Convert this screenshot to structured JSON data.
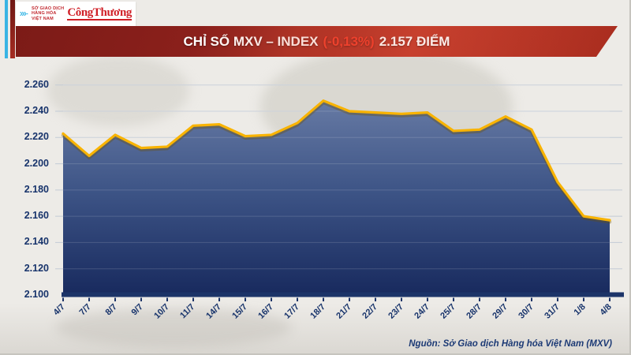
{
  "header": {
    "logo": {
      "org_lines": [
        "SỞ GIAO DỊCH",
        "HÀNG HÓA",
        "VIỆT NAM"
      ],
      "brand": "CôngThương"
    },
    "banner": {
      "title": "CHỈ SỐ MXV – INDEX",
      "change": "(-0,13%)",
      "points": "2.157 ĐIỂM"
    }
  },
  "footer": {
    "source": "Nguồn: Sở Giao dịch Hàng hóa Việt Nam (MXV)"
  },
  "colors": {
    "accent_red": "#f03a28",
    "banner_dark": "#7c1b17",
    "banner_bright": "#c23b2b",
    "line_yellow": "#f8b301",
    "line_shadow": "rgba(110,80,0,0.35)",
    "area_top": "#6c7fa8",
    "area_mid": "#3d5486",
    "area_bottom": "#182a5e",
    "navy_axis": "#1c3468",
    "grid": "#c3cbd6",
    "grid_on_area": "rgba(255,255,255,0.15)",
    "label_navy": "#17336b"
  },
  "chart_data": {
    "type": "area",
    "title": "CHỈ SỐ MXV – INDEX (-0,13%) 2.157 ĐIỂM",
    "xlabel": "",
    "ylabel": "",
    "x": [
      "4/7",
      "7/7",
      "8/7",
      "9/7",
      "10/7",
      "11/7",
      "14/7",
      "15/7",
      "16/7",
      "17/7",
      "18/7",
      "21/7",
      "22/7",
      "23/7",
      "24/7",
      "25/7",
      "28/7",
      "29/7",
      "30/7",
      "31/7",
      "1/8",
      "4/8"
    ],
    "values": [
      2223,
      2206,
      2222,
      2212,
      2213,
      2229,
      2230,
      2221,
      2222,
      2231,
      2248,
      2240,
      2239,
      2238,
      2239,
      2225,
      2226,
      2236,
      2226,
      2186,
      2160,
      2157
    ],
    "y_ticks": [
      "2.260",
      "2.240",
      "2.220",
      "2.200",
      "2.180",
      "2.160",
      "2.140",
      "2.120",
      "2.100"
    ],
    "ylim": [
      2100,
      2260
    ],
    "y_step": 20,
    "grid": true,
    "legend": false,
    "last_value_label": "2.157",
    "change_label": "(-0,13%)"
  }
}
